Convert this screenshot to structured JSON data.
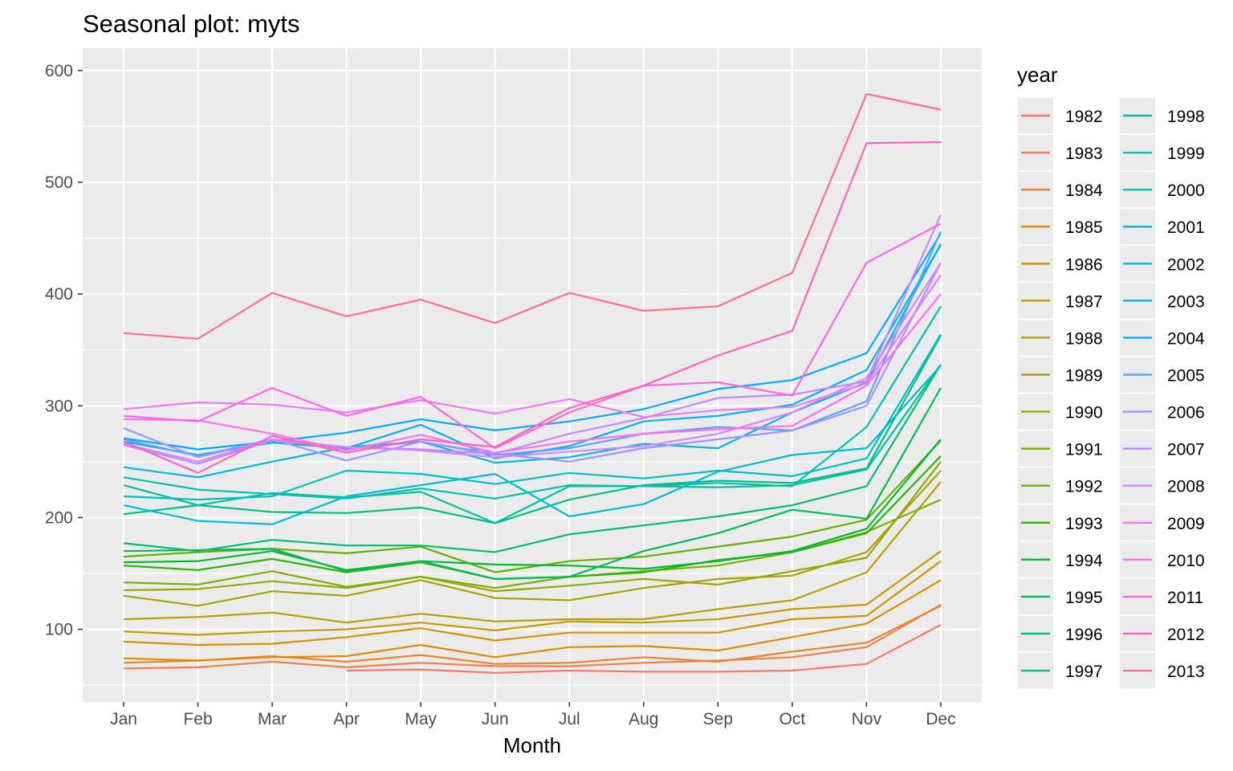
{
  "chart_data": {
    "type": "line",
    "title": "Seasonal plot: myts",
    "xlabel": "Month",
    "ylabel": "",
    "legend_title": "year",
    "legend_position": "right",
    "grid": true,
    "ylim": [
      35,
      620
    ],
    "yticks": [
      100,
      200,
      300,
      400,
      500,
      600
    ],
    "categories": [
      "Jan",
      "Feb",
      "Mar",
      "Apr",
      "May",
      "Jun",
      "Jul",
      "Aug",
      "Sep",
      "Oct",
      "Nov",
      "Dec"
    ],
    "series": [
      {
        "name": "1982",
        "color": "#F8766D",
        "values": [
          null,
          null,
          null,
          63,
          64,
          61,
          63,
          62,
          62,
          63,
          69,
          104
        ]
      },
      {
        "name": "1983",
        "color": "#F17D50",
        "values": [
          65,
          66,
          71,
          66,
          70,
          67,
          67,
          70,
          72,
          75,
          84,
          122
        ]
      },
      {
        "name": "1984",
        "color": "#E8852C",
        "values": [
          70,
          72,
          76,
          71,
          77,
          69,
          70,
          75,
          71,
          80,
          88,
          121
        ]
      },
      {
        "name": "1985",
        "color": "#DE8C00",
        "values": [
          74,
          72,
          75,
          76,
          86,
          75,
          84,
          85,
          81,
          93,
          105,
          144
        ]
      },
      {
        "name": "1986",
        "color": "#D29200",
        "values": [
          89,
          86,
          87,
          93,
          101,
          90,
          97,
          97,
          97,
          109,
          112,
          161
        ]
      },
      {
        "name": "1987",
        "color": "#C59900",
        "values": [
          98,
          95,
          98,
          100,
          106,
          99,
          107,
          106,
          109,
          118,
          122,
          170
        ]
      },
      {
        "name": "1988",
        "color": "#B79F00",
        "values": [
          109,
          111,
          115,
          106,
          114,
          107,
          109,
          109,
          118,
          126,
          151,
          232
        ]
      },
      {
        "name": "1989",
        "color": "#A7A400",
        "values": [
          130,
          121,
          134,
          130,
          144,
          128,
          126,
          137,
          145,
          148,
          169,
          242
        ]
      },
      {
        "name": "1990",
        "color": "#95A900",
        "values": [
          135,
          136,
          143,
          137,
          147,
          134,
          139,
          145,
          140,
          152,
          164,
          250
        ]
      },
      {
        "name": "1991",
        "color": "#80AE00",
        "values": [
          142,
          140,
          152,
          138,
          147,
          137,
          147,
          152,
          157,
          169,
          187,
          216
        ]
      },
      {
        "name": "1992",
        "color": "#64B200",
        "values": [
          165,
          169,
          172,
          168,
          174,
          151,
          161,
          165,
          174,
          183,
          198,
          269
        ]
      },
      {
        "name": "1993",
        "color": "#29B600",
        "values": [
          157,
          153,
          163,
          151,
          160,
          145,
          147,
          151,
          162,
          169,
          186,
          255
        ]
      },
      {
        "name": "1994",
        "color": "#00B931",
        "values": [
          160,
          161,
          170,
          153,
          161,
          158,
          157,
          154,
          161,
          170,
          190,
          270
        ]
      },
      {
        "name": "1995",
        "color": "#00BC56",
        "values": [
          170,
          171,
          172,
          152,
          161,
          145,
          147,
          170,
          186,
          207,
          199,
          316
        ]
      },
      {
        "name": "1996",
        "color": "#00BE70",
        "values": [
          177,
          170,
          180,
          175,
          175,
          169,
          185,
          193,
          201,
          211,
          228,
          337
        ]
      },
      {
        "name": "1997",
        "color": "#00C087",
        "values": [
          203,
          211,
          205,
          204,
          209,
          195,
          216,
          229,
          233,
          231,
          244,
          363
        ]
      },
      {
        "name": "1998",
        "color": "#00C19C",
        "values": [
          229,
          211,
          222,
          218,
          223,
          195,
          228,
          228,
          227,
          229,
          243,
          337
        ]
      },
      {
        "name": "1999",
        "color": "#00C0AF",
        "values": [
          236,
          225,
          221,
          217,
          226,
          217,
          229,
          228,
          231,
          228,
          281,
          389
        ]
      },
      {
        "name": "2000",
        "color": "#00BFC2",
        "values": [
          219,
          216,
          219,
          242,
          239,
          230,
          240,
          235,
          242,
          237,
          253,
          364
        ]
      },
      {
        "name": "2001",
        "color": "#00BCD2",
        "values": [
          211,
          197,
          194,
          219,
          229,
          239,
          201,
          212,
          241,
          256,
          262,
          336
        ]
      },
      {
        "name": "2002",
        "color": "#00B8E2",
        "values": [
          245,
          236,
          250,
          263,
          268,
          249,
          254,
          266,
          262,
          294,
          321,
          445
        ]
      },
      {
        "name": "2003",
        "color": "#00B2EF",
        "values": [
          268,
          256,
          267,
          262,
          283,
          253,
          264,
          286,
          291,
          301,
          332,
          444
        ]
      },
      {
        "name": "2004",
        "color": "#00ABFA",
        "values": [
          271,
          261,
          268,
          276,
          288,
          278,
          286,
          297,
          315,
          323,
          347,
          454
        ]
      },
      {
        "name": "2005",
        "color": "#5BA2FF",
        "values": [
          270,
          255,
          270,
          261,
          268,
          256,
          262,
          275,
          281,
          278,
          304,
          456
        ]
      },
      {
        "name": "2006",
        "color": "#9E93FF",
        "values": [
          280,
          254,
          270,
          251,
          268,
          257,
          250,
          262,
          270,
          278,
          300,
          428
        ]
      },
      {
        "name": "2007",
        "color": "#BF8AFF",
        "values": [
          265,
          248,
          269,
          263,
          261,
          257,
          275,
          289,
          307,
          310,
          322,
          471
        ]
      },
      {
        "name": "2008",
        "color": "#D982FF",
        "values": [
          266,
          250,
          270,
          263,
          260,
          254,
          259,
          264,
          275,
          294,
          325,
          428
        ]
      },
      {
        "name": "2009",
        "color": "#EE78F9",
        "values": [
          297,
          303,
          301,
          294,
          305,
          293,
          306,
          290,
          296,
          299,
          320,
          417
        ]
      },
      {
        "name": "2010",
        "color": "#FF6DEF",
        "values": [
          288,
          287,
          275,
          260,
          274,
          258,
          268,
          275,
          279,
          282,
          318,
          400
        ]
      },
      {
        "name": "2011",
        "color": "#FF64E1",
        "values": [
          291,
          286,
          316,
          291,
          308,
          262,
          294,
          318,
          321,
          309,
          428,
          463
        ]
      },
      {
        "name": "2012",
        "color": "#FF62BC",
        "values": [
          268,
          240,
          273,
          258,
          270,
          263,
          298,
          318,
          345,
          367,
          535,
          536
        ]
      },
      {
        "name": "2013",
        "color": "#FF6C90",
        "values": [
          365,
          360,
          401,
          380,
          395,
          374,
          401,
          385,
          389,
          419,
          579,
          565
        ]
      }
    ]
  }
}
